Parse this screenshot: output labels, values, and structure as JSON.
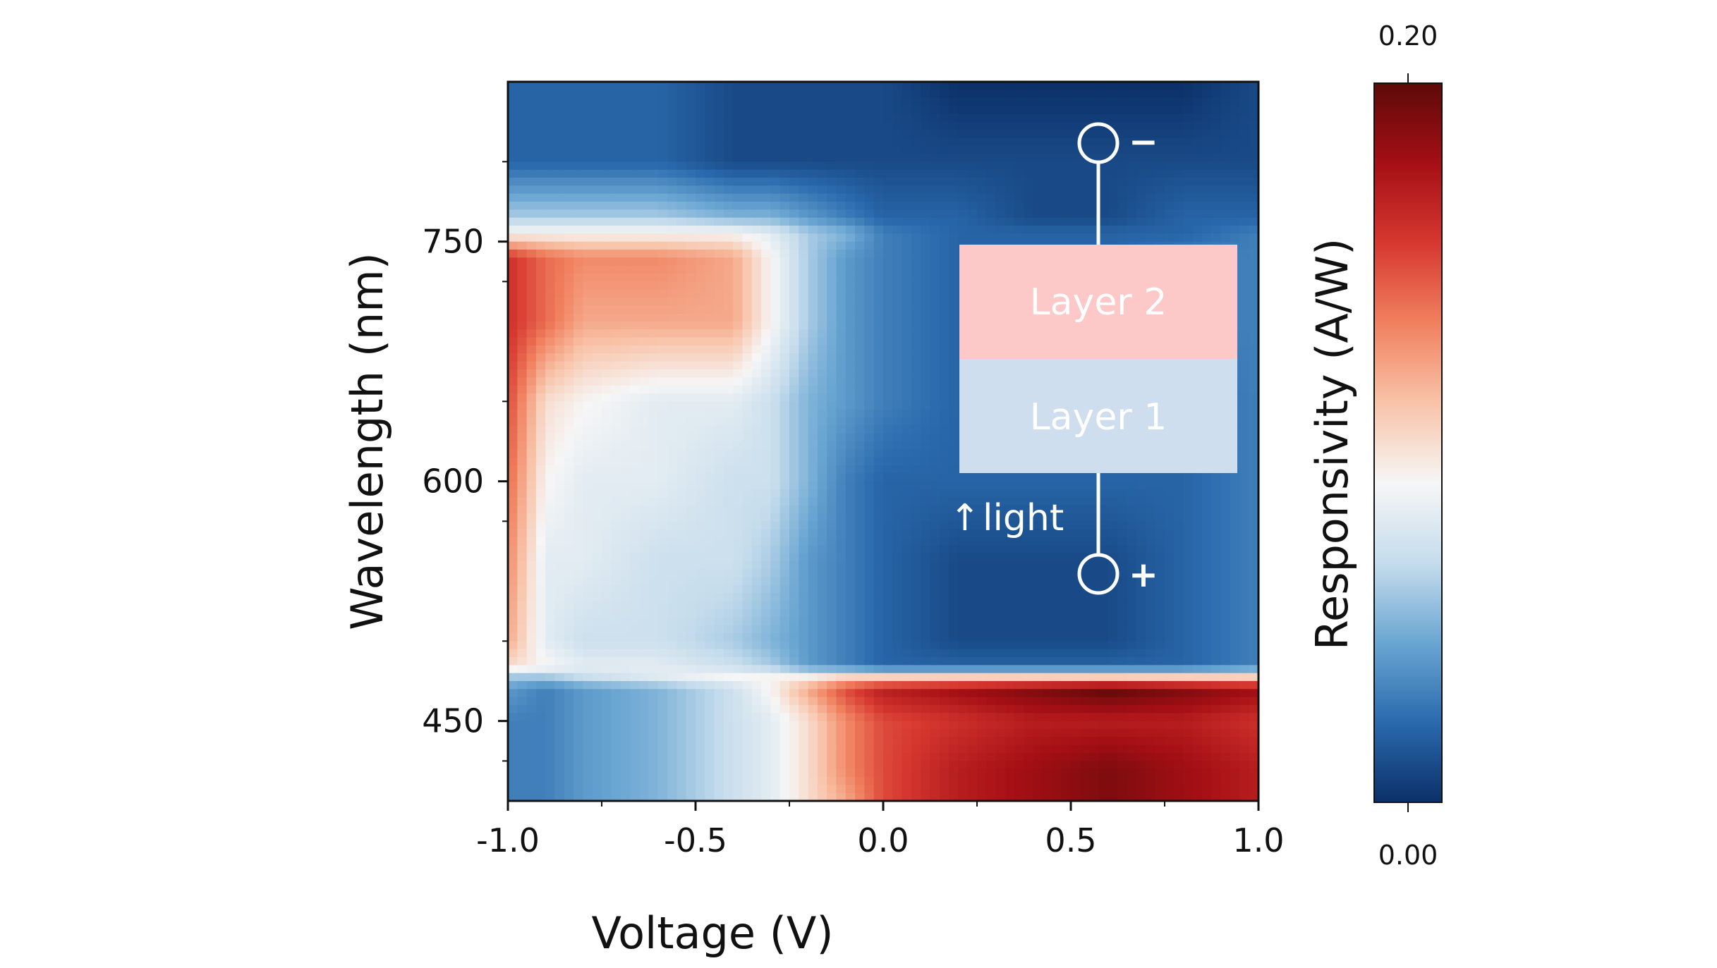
{
  "chart_data": {
    "type": "heatmap",
    "xlabel": "Voltage (V)",
    "ylabel": "Wavelength (nm)",
    "xlim": [
      -1.0,
      1.0
    ],
    "ylim": [
      400,
      850
    ],
    "x_ticks": [
      "-1.0",
      "-0.5",
      "0.0",
      "0.5",
      "1.0"
    ],
    "x_tick_values": [
      -1.0,
      -0.5,
      0.0,
      0.5,
      1.0
    ],
    "y_ticks": [
      "450",
      "600",
      "750"
    ],
    "y_tick_values": [
      450,
      600,
      750
    ],
    "x": [
      -1.0,
      -0.9,
      -0.8,
      -0.6,
      -0.4,
      -0.3,
      -0.2,
      -0.1,
      0.0,
      0.2,
      0.4,
      0.6,
      0.8,
      1.0
    ],
    "y": [
      400,
      420,
      450,
      470,
      478,
      484,
      500,
      550,
      600,
      650,
      700,
      740,
      755,
      765,
      800,
      850
    ],
    "z": [
      [
        0.03,
        0.03,
        0.04,
        0.05,
        0.07,
        0.08,
        0.1,
        0.12,
        0.15,
        0.17,
        0.18,
        0.19,
        0.18,
        0.17
      ],
      [
        0.03,
        0.03,
        0.04,
        0.05,
        0.07,
        0.08,
        0.1,
        0.13,
        0.15,
        0.17,
        0.18,
        0.19,
        0.18,
        0.17
      ],
      [
        0.03,
        0.03,
        0.04,
        0.05,
        0.07,
        0.08,
        0.1,
        0.13,
        0.15,
        0.16,
        0.17,
        0.17,
        0.17,
        0.16
      ],
      [
        0.04,
        0.03,
        0.04,
        0.05,
        0.07,
        0.09,
        0.12,
        0.15,
        0.17,
        0.18,
        0.19,
        0.2,
        0.19,
        0.18
      ],
      [
        0.06,
        0.06,
        0.07,
        0.08,
        0.09,
        0.09,
        0.09,
        0.1,
        0.1,
        0.1,
        0.1,
        0.1,
        0.1,
        0.1
      ],
      [
        0.1,
        0.09,
        0.08,
        0.08,
        0.07,
        0.06,
        0.04,
        0.03,
        0.02,
        0.02,
        0.02,
        0.02,
        0.02,
        0.03
      ],
      [
        0.12,
        0.08,
        0.07,
        0.07,
        0.06,
        0.05,
        0.04,
        0.03,
        0.02,
        0.01,
        0.01,
        0.01,
        0.02,
        0.03
      ],
      [
        0.13,
        0.08,
        0.08,
        0.07,
        0.07,
        0.06,
        0.04,
        0.03,
        0.02,
        0.01,
        0.01,
        0.01,
        0.02,
        0.03
      ],
      [
        0.14,
        0.09,
        0.08,
        0.08,
        0.07,
        0.07,
        0.05,
        0.03,
        0.02,
        0.02,
        0.02,
        0.02,
        0.02,
        0.03
      ],
      [
        0.15,
        0.1,
        0.09,
        0.08,
        0.08,
        0.07,
        0.05,
        0.04,
        0.03,
        0.02,
        0.02,
        0.02,
        0.02,
        0.03
      ],
      [
        0.16,
        0.14,
        0.12,
        0.12,
        0.12,
        0.09,
        0.06,
        0.04,
        0.03,
        0.02,
        0.02,
        0.02,
        0.03,
        0.03
      ],
      [
        0.16,
        0.14,
        0.13,
        0.13,
        0.12,
        0.09,
        0.06,
        0.04,
        0.03,
        0.02,
        0.02,
        0.02,
        0.03,
        0.03
      ],
      [
        0.09,
        0.09,
        0.09,
        0.09,
        0.09,
        0.08,
        0.06,
        0.05,
        0.03,
        0.02,
        0.02,
        0.02,
        0.02,
        0.03
      ],
      [
        0.06,
        0.06,
        0.06,
        0.06,
        0.05,
        0.05,
        0.04,
        0.03,
        0.02,
        0.02,
        0.01,
        0.01,
        0.02,
        0.02
      ],
      [
        0.02,
        0.02,
        0.02,
        0.02,
        0.01,
        0.01,
        0.01,
        0.01,
        0.01,
        0.01,
        0.01,
        0.01,
        0.01,
        0.01
      ],
      [
        0.02,
        0.02,
        0.02,
        0.02,
        0.01,
        0.01,
        0.01,
        0.01,
        0.01,
        0.0,
        0.0,
        0.0,
        0.0,
        0.01
      ]
    ],
    "colorbar": {
      "label": "Responsivity (A/W)",
      "min": 0.0,
      "max": 0.2,
      "min_label": "0.00",
      "max_label": "0.20",
      "colors": [
        "#0b3068",
        "#2a6aad",
        "#6aa6d2",
        "#c5dcec",
        "#f6f6f6",
        "#f8c3a8",
        "#f0805e",
        "#d63830",
        "#a50f15",
        "#5e0a0a"
      ]
    },
    "annotations": {
      "layer_top": "Layer 2",
      "layer_bottom": "Layer 1",
      "terminal_top": "−",
      "terminal_bottom": "+",
      "light_label": "light",
      "light_arrow": "↑",
      "layer_top_color": "#fcc8c8",
      "layer_bottom_color": "#cfdeee"
    },
    "grid": false
  }
}
